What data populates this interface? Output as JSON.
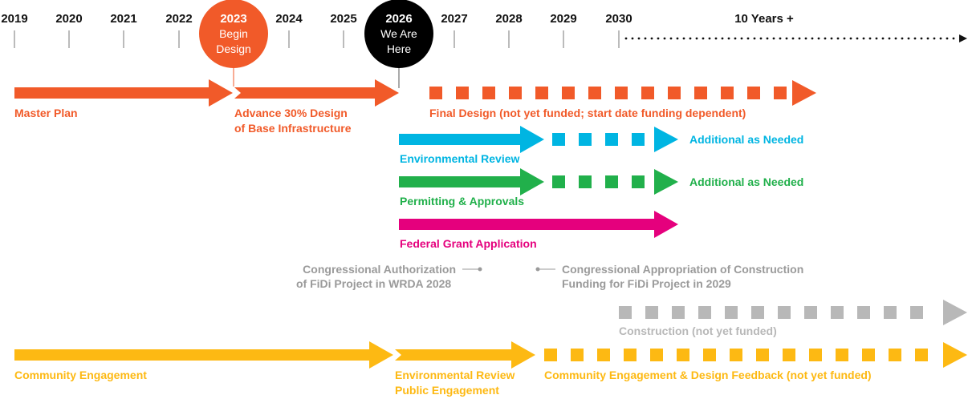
{
  "timeline": {
    "years": [
      "2019",
      "2020",
      "2021",
      "2022",
      "2023",
      "2024",
      "2025",
      "2026",
      "2027",
      "2028",
      "2029",
      "2030"
    ],
    "beyond_label": "10 Years +",
    "milestones": [
      {
        "year": "2023",
        "line1": "Begin",
        "line2": "Design",
        "color": "#F15A29"
      },
      {
        "year": "2026",
        "line1": "We Are",
        "line2": "Here",
        "color": "#000000"
      }
    ]
  },
  "colors": {
    "orange": "#F15A29",
    "blue": "#00B5E2",
    "green": "#21B04B",
    "magenta": "#E5007D",
    "gray_text": "#9A9A9A",
    "gray_construction": "#B8B8B8",
    "yellow": "#FDB913"
  },
  "tracks": {
    "master_plan": "Master Plan",
    "advance_design_1": "Advance 30% Design",
    "advance_design_2": "of Base Infrastructure",
    "final_design": "Final Design (not yet funded; start date funding dependent)",
    "environmental_review": "Environmental Review",
    "environmental_additional": "Additional as Needed",
    "permitting": "Permitting & Approvals",
    "permitting_additional": "Additional as Needed",
    "federal_grant": "Federal Grant Application",
    "authorization_1": "Congressional Authorization",
    "authorization_2": "of FiDi Project in WRDA 2028",
    "appropriation_1": "Congressional Appropriation of Construction",
    "appropriation_2": "Funding for FiDi Project in 2029",
    "construction": "Construction (not yet funded)",
    "community_engagement": "Community Engagement",
    "env_public_1": "Environmental Review",
    "env_public_2": "Public Engagement",
    "community_feedback": "Community Engagement & Design Feedback (not yet funded)"
  }
}
